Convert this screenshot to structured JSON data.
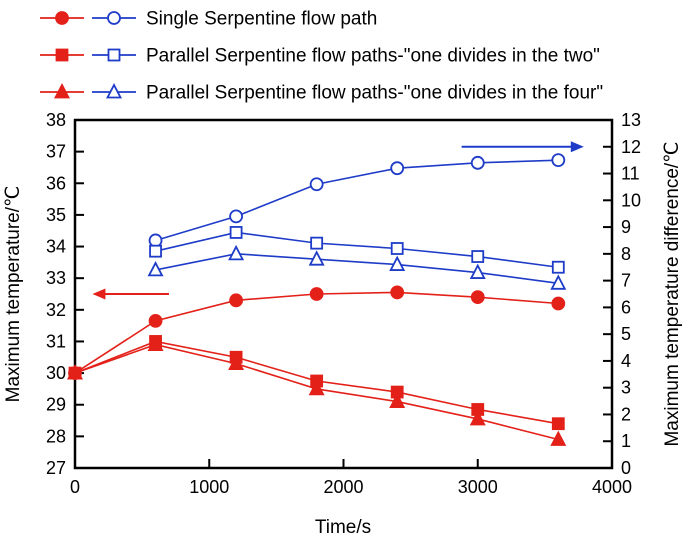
{
  "colors": {
    "red": "#e32119",
    "blue": "#1e3cc8",
    "frame": "#000000",
    "background": "#ffffff"
  },
  "legend": [
    {
      "label": "Single Serpentine flow path",
      "marker": "circle"
    },
    {
      "label": "Parallel Serpentine flow paths-\"one divides in the two\"",
      "marker": "square"
    },
    {
      "label": "Parallel Serpentine flow paths-\"one divides in the four\"",
      "marker": "triangle"
    }
  ],
  "chart_data": {
    "type": "line",
    "title": "",
    "xlabel": "Time/s",
    "ylabel": "Maximum temperature/℃",
    "y2label": "Maximum temperature difference/℃",
    "xlim": [
      0,
      4000
    ],
    "ylim": [
      27,
      38
    ],
    "y2lim": [
      0,
      13
    ],
    "x_ticks": [
      0,
      1000,
      2000,
      3000,
      4000
    ],
    "y_ticks": [
      27,
      28,
      29,
      30,
      31,
      32,
      33,
      34,
      35,
      36,
      37,
      38
    ],
    "y2_ticks": [
      0,
      1,
      2,
      3,
      4,
      5,
      6,
      7,
      8,
      9,
      10,
      11,
      12,
      13
    ],
    "grid": false,
    "legend_position": "top-left",
    "series": [
      {
        "name": "Single Serpentine flow path - maximum temperature",
        "axis": "left",
        "color": "red",
        "marker": "circle",
        "fill": "solid",
        "x": [
          0,
          600,
          1200,
          1800,
          2400,
          3000,
          3600
        ],
        "y": [
          30.0,
          31.65,
          32.3,
          32.5,
          32.55,
          32.4,
          32.2
        ]
      },
      {
        "name": "Parallel Serpentine flow paths-\"one divides in the two\" - maximum temperature",
        "axis": "left",
        "color": "red",
        "marker": "square",
        "fill": "solid",
        "x": [
          0,
          600,
          1200,
          1800,
          2400,
          3000,
          3600
        ],
        "y": [
          30.0,
          31.0,
          30.5,
          29.75,
          29.4,
          28.85,
          28.4
        ]
      },
      {
        "name": "Parallel Serpentine flow paths-\"one divides in the four\" - maximum temperature",
        "axis": "left",
        "color": "red",
        "marker": "triangle",
        "fill": "solid",
        "x": [
          0,
          600,
          1200,
          1800,
          2400,
          3000,
          3600
        ],
        "y": [
          30.0,
          30.9,
          30.3,
          29.5,
          29.1,
          28.55,
          27.9
        ]
      },
      {
        "name": "Single Serpentine flow path - maximum temperature difference",
        "axis": "right",
        "color": "blue",
        "marker": "circle",
        "fill": "open",
        "x": [
          600,
          1200,
          1800,
          2400,
          3000,
          3600
        ],
        "y": [
          8.5,
          9.4,
          10.6,
          11.2,
          11.4,
          11.5
        ]
      },
      {
        "name": "Parallel Serpentine flow paths-\"one divides in the two\" - maximum temperature difference",
        "axis": "right",
        "color": "blue",
        "marker": "square",
        "fill": "open",
        "x": [
          600,
          1200,
          1800,
          2400,
          3000,
          3600
        ],
        "y": [
          8.1,
          8.8,
          8.4,
          8.2,
          7.9,
          7.5
        ]
      },
      {
        "name": "Parallel Serpentine flow paths-\"one divides in the four\" - maximum temperature difference",
        "axis": "right",
        "color": "blue",
        "marker": "triangle",
        "fill": "open",
        "x": [
          600,
          1200,
          1800,
          2400,
          3000,
          3600
        ],
        "y": [
          7.4,
          8.0,
          7.8,
          7.6,
          7.3,
          6.9
        ]
      }
    ],
    "annotations": [
      {
        "type": "arrow",
        "axis": "left",
        "color": "red",
        "x_from": 700,
        "x_to": 130,
        "y": 32.5
      },
      {
        "type": "arrow",
        "axis": "right",
        "color": "blue",
        "x_from": 2880,
        "x_to": 3790,
        "y": 12.0
      }
    ]
  }
}
